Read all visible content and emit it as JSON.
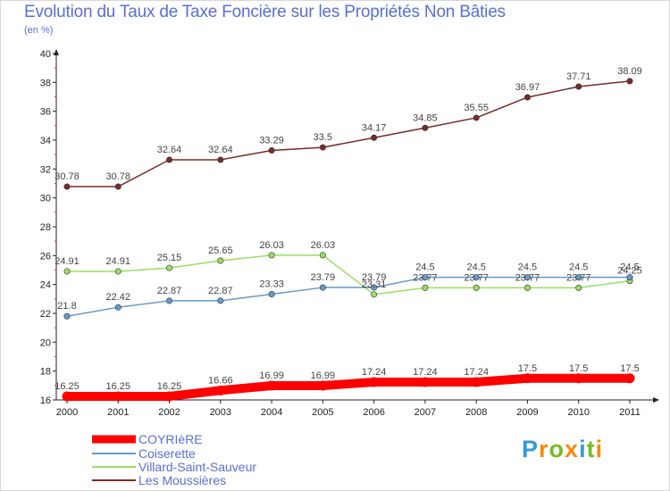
{
  "chart_data": {
    "type": "line",
    "title": "Evolution du Taux de Taxe Foncière sur les Propriétés Non Bâties",
    "subtitle": "(en %)",
    "xlabel": "",
    "ylabel": "",
    "x": [
      "2000",
      "2001",
      "2002",
      "2003",
      "2004",
      "2005",
      "2006",
      "2007",
      "2008",
      "2009",
      "2010",
      "2011"
    ],
    "ylim": [
      16,
      40
    ],
    "yticks": [
      16,
      18,
      20,
      22,
      24,
      26,
      28,
      30,
      32,
      34,
      36,
      38,
      40
    ],
    "grid": false,
    "legend": "bottom-left",
    "series": [
      {
        "name": "COYRIèRE",
        "color": "#ff0000",
        "values": [
          16.25,
          16.25,
          16.25,
          16.66,
          16.99,
          16.99,
          17.24,
          17.24,
          17.24,
          17.5,
          17.5,
          17.5
        ]
      },
      {
        "name": "Coiserette",
        "color": "#6699cc",
        "values": [
          21.8,
          22.42,
          22.87,
          22.87,
          23.33,
          23.79,
          23.79,
          24.5,
          24.5,
          24.5,
          24.5,
          24.5
        ]
      },
      {
        "name": "Villard-Saint-Sauveur",
        "color": "#99dd66",
        "values": [
          24.91,
          24.91,
          25.15,
          25.65,
          26.03,
          26.03,
          23.31,
          23.77,
          23.77,
          23.77,
          23.77,
          24.25
        ]
      },
      {
        "name": "Les Moussières",
        "color": "#7a2a2a",
        "values": [
          30.78,
          30.78,
          32.64,
          32.64,
          33.29,
          33.5,
          34.17,
          34.85,
          35.55,
          36.97,
          37.71,
          38.09
        ]
      }
    ]
  },
  "logo": {
    "letters": [
      "P",
      "r",
      "o",
      "x",
      "i",
      "t",
      "i"
    ],
    "colors": [
      "#3399dd",
      "#ff8800",
      "#77bb22",
      "#ff8800",
      "#3399dd",
      "#77bb22",
      "#ff8800"
    ]
  }
}
